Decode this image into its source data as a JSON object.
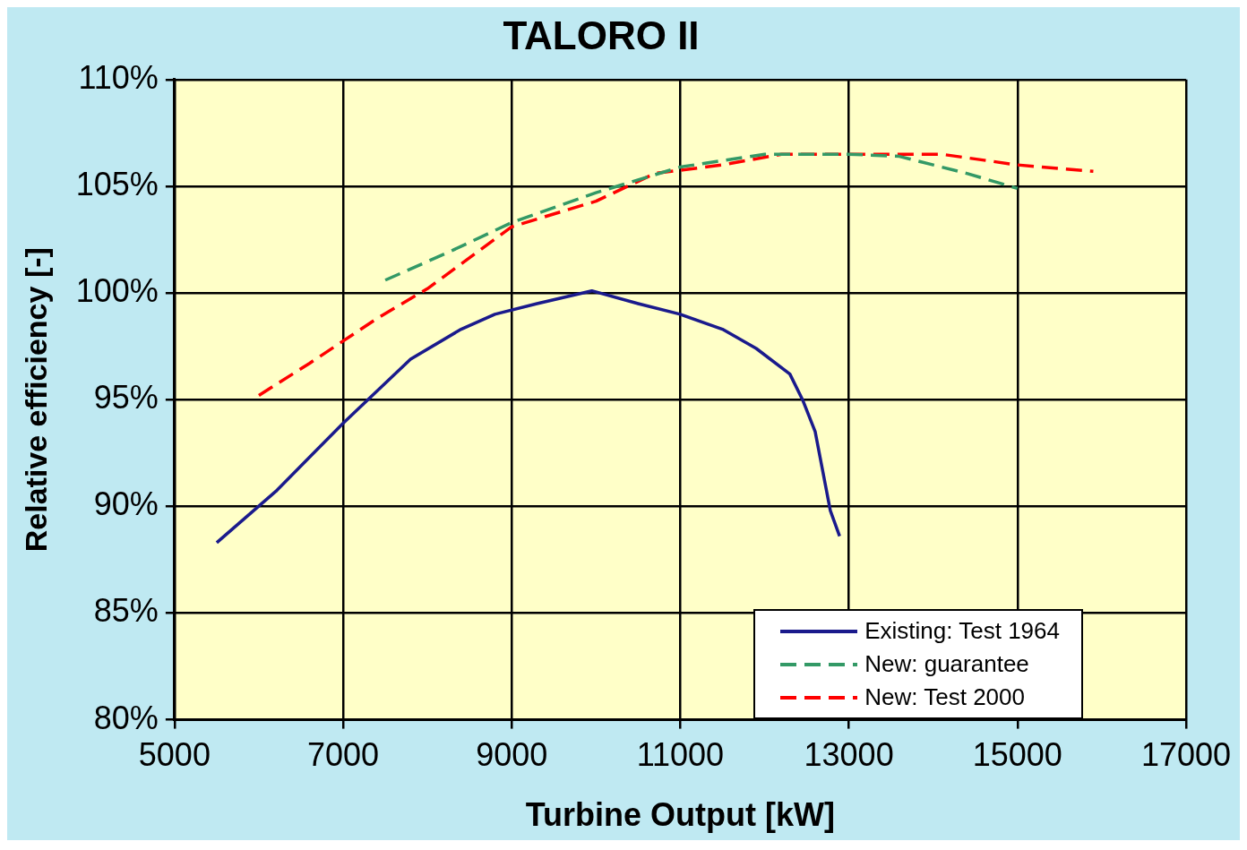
{
  "chart_data": {
    "type": "line",
    "title": "TALORO II",
    "xlabel": "Turbine Output [kW]",
    "ylabel": "Relative efficiency [-]",
    "xlim": [
      5000,
      17000
    ],
    "xticks": [
      5000,
      7000,
      9000,
      11000,
      13000,
      15000,
      17000
    ],
    "ylim": [
      80,
      110
    ],
    "yticks": [
      {
        "value": 80,
        "label": "80%"
      },
      {
        "value": 85,
        "label": "85%"
      },
      {
        "value": 90,
        "label": "90%"
      },
      {
        "value": 95,
        "label": "95%"
      },
      {
        "value": 100,
        "label": "100%"
      },
      {
        "value": 105,
        "label": "105%"
      },
      {
        "value": 110,
        "label": "110%"
      }
    ],
    "grid": true,
    "legend": "bottom right",
    "marker": "none",
    "series": [
      {
        "name": "Existing: Test 1964",
        "color": "#1a1a8c",
        "line_style": "solid",
        "x": [
          5500,
          6200,
          7000,
          7800,
          8400,
          8800,
          9300,
          9950,
          10500,
          11000,
          11500,
          11900,
          12300,
          12450,
          12600,
          12780,
          12890
        ],
        "values": [
          88.3,
          90.7,
          93.9,
          96.9,
          98.3,
          99.0,
          99.5,
          100.1,
          99.5,
          99.0,
          98.3,
          97.4,
          96.2,
          95.0,
          93.5,
          89.8,
          88.6
        ]
      },
      {
        "name": "New: guarantee",
        "color": "#339966",
        "line_style": "dashed",
        "x": [
          7500,
          8300,
          9000,
          10000,
          11000,
          12000,
          13000,
          13600,
          14400,
          15000
        ],
        "values": [
          100.6,
          102.0,
          103.3,
          104.7,
          105.9,
          106.5,
          106.5,
          106.4,
          105.6,
          104.9
        ]
      },
      {
        "name": "New: Test 2000",
        "color": "#ff0000",
        "line_style": "dashed",
        "x": [
          6000,
          6600,
          7400,
          8000,
          9000,
          10000,
          10700,
          11500,
          12200,
          13200,
          14100,
          15000,
          15900
        ],
        "values": [
          95.2,
          96.7,
          98.8,
          100.2,
          103.1,
          104.3,
          105.6,
          106.0,
          106.5,
          106.5,
          106.5,
          106.0,
          105.7
        ]
      }
    ]
  }
}
